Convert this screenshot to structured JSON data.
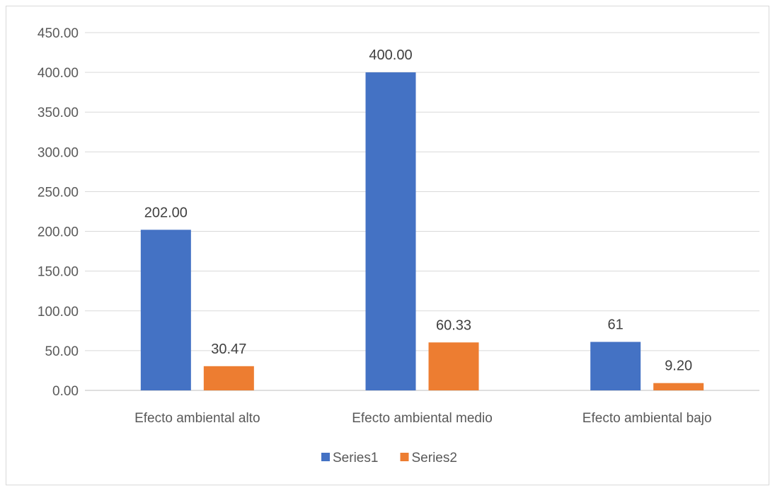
{
  "chart_data": {
    "type": "bar",
    "categories": [
      "Efecto ambiental alto",
      "Efecto ambiental medio",
      "Efecto ambiental bajo"
    ],
    "series": [
      {
        "name": "Series1",
        "values": [
          202.0,
          400.0,
          61
        ],
        "labels": [
          "202.00",
          "400.00",
          "61"
        ],
        "color": "#4472c4"
      },
      {
        "name": "Series2",
        "values": [
          30.47,
          60.33,
          9.2
        ],
        "labels": [
          "30.47",
          "60.33",
          "9.20"
        ],
        "color": "#ed7d31"
      }
    ],
    "ylim": [
      0,
      450
    ],
    "yticks": [
      "0.00",
      "50.00",
      "100.00",
      "150.00",
      "200.00",
      "250.00",
      "300.00",
      "350.00",
      "400.00",
      "450.00"
    ],
    "grid": true,
    "legend": "bottom"
  }
}
